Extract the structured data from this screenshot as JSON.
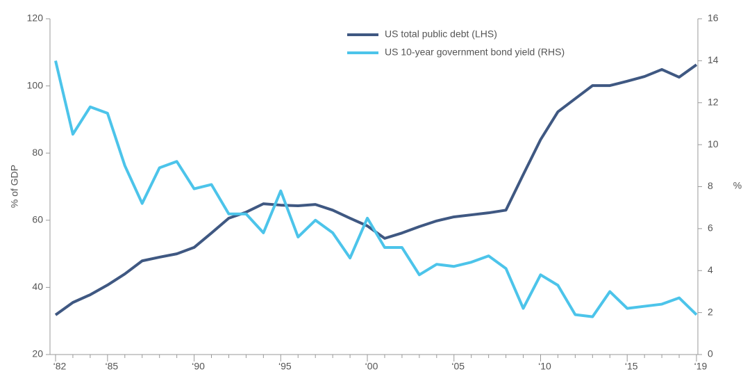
{
  "chart_data": {
    "type": "line",
    "categories": [
      "‘82",
      null,
      null,
      "‘85",
      null,
      null,
      null,
      null,
      "‘90",
      null,
      null,
      null,
      null,
      "‘95",
      null,
      null,
      null,
      null,
      "‘00",
      null,
      null,
      null,
      null,
      "‘05",
      null,
      null,
      null,
      null,
      "‘10",
      null,
      null,
      null,
      null,
      "‘15",
      null,
      null,
      null,
      "‘19"
    ],
    "series": [
      {
        "name": "US total public debt (LHS)",
        "color": "#3f5882",
        "axis": "y",
        "values": [
          31.8,
          35.5,
          37.8,
          40.7,
          44,
          47.9,
          49,
          50,
          51.9,
          56.2,
          60.6,
          62.4,
          64.9,
          64.5,
          64.3,
          64.7,
          63,
          60.6,
          58.3,
          54.6,
          56.2,
          58.1,
          59.8,
          61,
          61.6,
          62.2,
          63,
          73.6,
          84,
          92.3,
          96.2,
          100.1,
          100.1,
          101.4,
          102.8,
          104.9,
          102.6,
          106.3
        ]
      },
      {
        "name": "US 10-year government bond yield (RHS)",
        "color": "#4cc4ea",
        "axis": "y2",
        "values": [
          14.0,
          10.5,
          11.8,
          11.5,
          9.0,
          7.2,
          8.9,
          9.2,
          7.9,
          8.1,
          6.7,
          6.7,
          5.8,
          7.8,
          5.6,
          6.4,
          5.8,
          4.6,
          6.5,
          5.1,
          5.1,
          3.8,
          4.3,
          4.2,
          4.4,
          4.7,
          4.1,
          2.2,
          3.8,
          3.3,
          1.9,
          1.8,
          3.0,
          2.2,
          2.3,
          2.4,
          2.7,
          1.9
        ]
      }
    ],
    "ylabel": "% of GDP",
    "y2label": "%",
    "ylim": [
      20,
      120
    ],
    "yticks": [
      20,
      40,
      60,
      80,
      100,
      120
    ],
    "y2lim": [
      0,
      16
    ],
    "y2ticks": [
      0,
      2,
      4,
      6,
      8,
      10,
      12,
      14,
      16
    ],
    "legend": "top"
  }
}
